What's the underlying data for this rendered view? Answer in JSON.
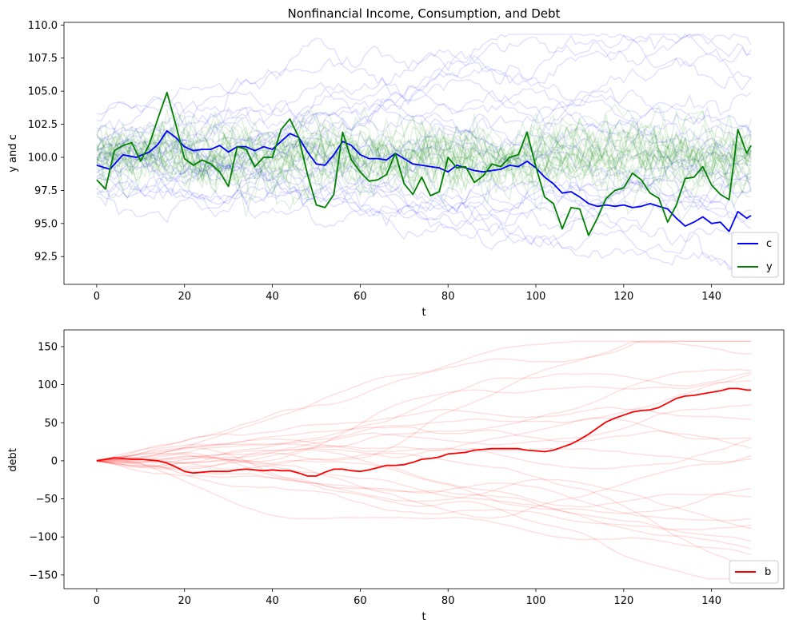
{
  "chart_data": [
    {
      "type": "line",
      "title": "Nonfinancial Income, Consumption, and Debt",
      "xlabel": "t",
      "ylabel": "y and c",
      "xlim": [
        -7.45,
        156.45
      ],
      "ylim": [
        90.4,
        110.2
      ],
      "xticks": [
        0,
        20,
        40,
        60,
        80,
        100,
        120,
        140
      ],
      "yticks": [
        92.5,
        95.0,
        97.5,
        100.0,
        102.5,
        105.0,
        107.5,
        110.0
      ],
      "ytick_labels": [
        "92.5",
        "95.0",
        "97.5",
        "100.0",
        "102.5",
        "105.0",
        "107.5",
        "110.0"
      ],
      "grid": false,
      "legend_position": "lower right",
      "series": [
        {
          "name": "c",
          "color": "#0000ff",
          "x": [
            0,
            3,
            6,
            9,
            12,
            14,
            16,
            18,
            20,
            22,
            24,
            26,
            28,
            30,
            32,
            34,
            36,
            38,
            40,
            42,
            44,
            46,
            48,
            50,
            52,
            54,
            56,
            58,
            60,
            62,
            64,
            66,
            68,
            70,
            72,
            74,
            76,
            78,
            80,
            82,
            84,
            86,
            88,
            90,
            92,
            94,
            96,
            98,
            100,
            102,
            104,
            106,
            108,
            110,
            112,
            114,
            116,
            118,
            120,
            122,
            124,
            126,
            128,
            130,
            132,
            134,
            136,
            138,
            140,
            142,
            144,
            146,
            148,
            149
          ],
          "values": [
            99.4,
            99.1,
            100.2,
            100.0,
            100.4,
            101.0,
            102.0,
            101.5,
            100.8,
            100.5,
            100.6,
            100.6,
            100.9,
            100.4,
            100.8,
            100.8,
            100.5,
            100.8,
            100.6,
            101.2,
            101.8,
            101.5,
            100.4,
            99.5,
            99.4,
            100.2,
            101.2,
            100.9,
            100.2,
            99.9,
            99.9,
            99.8,
            100.3,
            99.9,
            99.5,
            99.4,
            99.3,
            99.2,
            98.9,
            99.4,
            99.2,
            99.0,
            98.9,
            99.0,
            99.1,
            99.4,
            99.3,
            99.7,
            99.2,
            98.5,
            98.0,
            97.3,
            97.4,
            97.0,
            96.5,
            96.3,
            96.4,
            96.3,
            96.4,
            96.2,
            96.3,
            96.5,
            96.3,
            96.1,
            95.4,
            94.8,
            95.1,
            95.5,
            95.0,
            95.1,
            94.4,
            95.9,
            95.4,
            95.6
          ]
        },
        {
          "name": "y",
          "color": "#008000",
          "x": [
            0,
            2,
            4,
            6,
            8,
            10,
            12,
            14,
            16,
            18,
            20,
            22,
            24,
            26,
            28,
            30,
            32,
            34,
            36,
            38,
            40,
            42,
            44,
            46,
            48,
            50,
            52,
            54,
            56,
            58,
            60,
            62,
            64,
            66,
            68,
            70,
            72,
            74,
            76,
            78,
            80,
            82,
            84,
            86,
            88,
            90,
            92,
            94,
            96,
            98,
            100,
            102,
            104,
            106,
            108,
            110,
            112,
            114,
            116,
            118,
            120,
            122,
            124,
            126,
            128,
            130,
            132,
            134,
            136,
            138,
            140,
            142,
            144,
            146,
            148,
            149
          ],
          "values": [
            98.3,
            97.6,
            100.5,
            100.9,
            101.1,
            99.7,
            101.0,
            103.0,
            104.9,
            102.5,
            99.9,
            99.4,
            99.8,
            99.5,
            98.9,
            97.8,
            100.8,
            100.6,
            99.3,
            100.0,
            100.0,
            102.1,
            102.9,
            101.5,
            98.7,
            96.4,
            96.2,
            97.2,
            101.9,
            99.8,
            98.9,
            98.2,
            98.3,
            98.7,
            100.3,
            98.0,
            97.2,
            98.5,
            97.1,
            97.4,
            100.0,
            99.2,
            99.3,
            98.1,
            98.6,
            99.5,
            99.3,
            100.0,
            100.2,
            101.9,
            99.3,
            97.0,
            96.5,
            94.6,
            96.2,
            96.1,
            94.1,
            95.4,
            96.9,
            97.5,
            97.7,
            98.8,
            98.3,
            97.3,
            96.9,
            95.1,
            96.4,
            98.4,
            98.5,
            99.3,
            97.9,
            97.2,
            96.8,
            102.1,
            100.3,
            100.9
          ]
        }
      ]
    },
    {
      "type": "line",
      "title": "",
      "xlabel": "t",
      "ylabel": "debt",
      "xlim": [
        -7.45,
        156.45
      ],
      "ylim": [
        -168,
        172
      ],
      "xticks": [
        0,
        20,
        40,
        60,
        80,
        100,
        120,
        140
      ],
      "yticks": [
        -150,
        -100,
        -50,
        0,
        50,
        100,
        150
      ],
      "ytick_labels": [
        "−150",
        "−100",
        "−50",
        "0",
        "50",
        "100",
        "150"
      ],
      "grid": false,
      "legend_position": "lower right",
      "series": [
        {
          "name": "b",
          "color": "#ff0000",
          "x": [
            0,
            2,
            4,
            6,
            8,
            10,
            12,
            14,
            16,
            18,
            20,
            22,
            24,
            26,
            28,
            30,
            32,
            34,
            36,
            38,
            40,
            42,
            44,
            46,
            48,
            50,
            52,
            54,
            56,
            58,
            60,
            62,
            64,
            66,
            68,
            70,
            72,
            74,
            76,
            78,
            80,
            82,
            84,
            86,
            88,
            90,
            92,
            94,
            96,
            98,
            100,
            102,
            104,
            106,
            108,
            110,
            112,
            114,
            116,
            118,
            120,
            122,
            124,
            126,
            128,
            130,
            132,
            134,
            136,
            138,
            140,
            142,
            144,
            146,
            148,
            149
          ],
          "values": [
            0,
            2,
            4,
            3,
            2,
            2,
            1,
            0,
            -3,
            -8,
            -14,
            -16,
            -15,
            -14,
            -14,
            -14,
            -12,
            -11,
            -12,
            -13,
            -12,
            -13,
            -13,
            -16,
            -20,
            -20,
            -15,
            -11,
            -11,
            -13,
            -14,
            -12,
            -9,
            -6,
            -6,
            -5,
            -2,
            2,
            3,
            5,
            9,
            10,
            11,
            14,
            15,
            16,
            16,
            16,
            16,
            14,
            13,
            12,
            14,
            18,
            22,
            28,
            35,
            43,
            51,
            56,
            60,
            64,
            66,
            67,
            70,
            76,
            82,
            85,
            86,
            88,
            90,
            92,
            95,
            95,
            93,
            93
          ]
        }
      ]
    }
  ]
}
